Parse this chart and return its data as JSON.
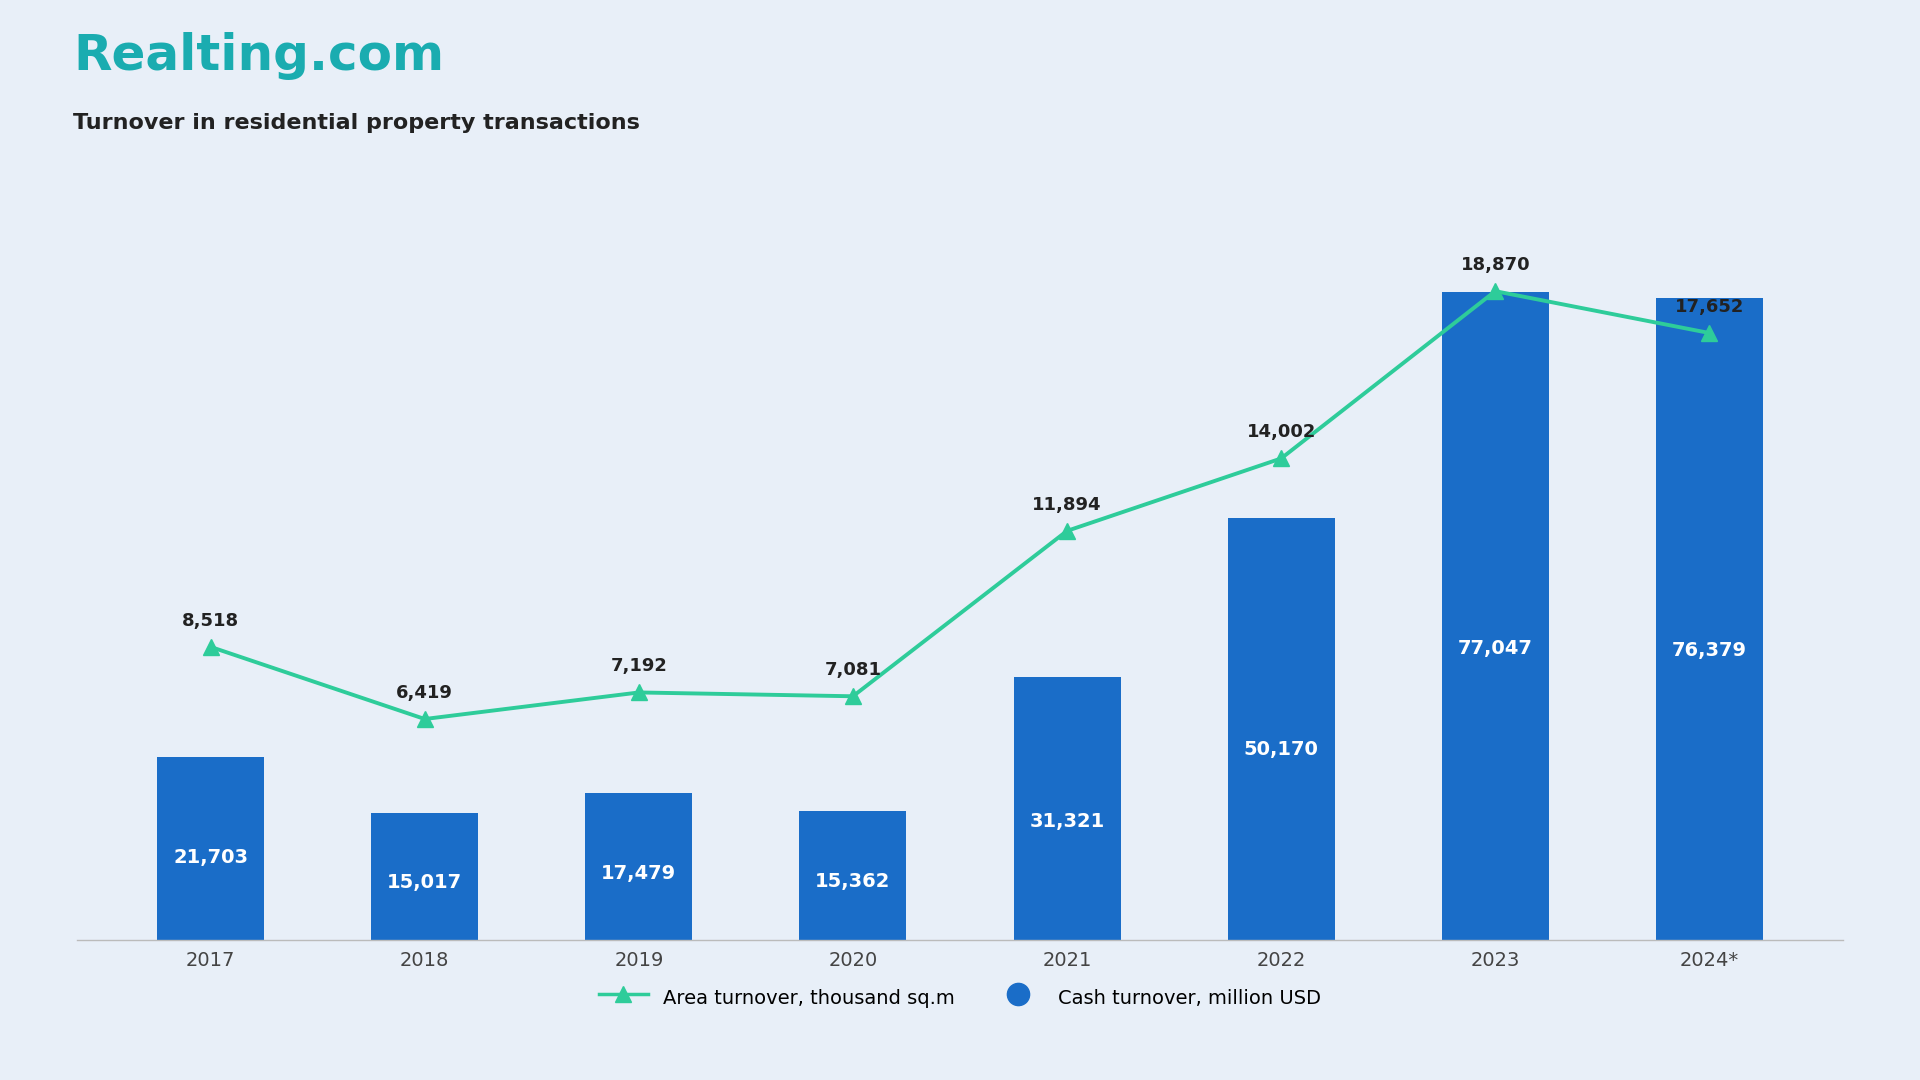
{
  "years": [
    "2017",
    "2018",
    "2019",
    "2020",
    "2021",
    "2022",
    "2023",
    "2024*"
  ],
  "cash_turnover": [
    21703,
    15017,
    17479,
    15362,
    31321,
    50170,
    77047,
    76379
  ],
  "area_turnover": [
    8518,
    6419,
    7192,
    7081,
    11894,
    14002,
    18870,
    17652
  ],
  "bar_color": "#1A6DC8",
  "line_color": "#2ECC9A",
  "marker_color": "#2ECC9A",
  "background_color": "#E8EFF8",
  "title": "Realting.com",
  "subtitle": "Turnover in residential property transactions",
  "title_color": "#1AACB0",
  "subtitle_color": "#222222",
  "bar_label_color": "#ffffff",
  "line_label_color": "#222222",
  "legend_line_label": "Area turnover, thousand sq.m",
  "legend_bar_label": "Cash turnover, million USD",
  "bar_width": 0.5,
  "line_width": 2.8,
  "marker_size": 11,
  "title_fontsize": 36,
  "subtitle_fontsize": 16,
  "tick_fontsize": 14,
  "bar_label_fontsize": 14,
  "line_label_fontsize": 13,
  "legend_fontsize": 14,
  "primary_ylim": [
    0,
    90000
  ],
  "secondary_ylim_max": 22000
}
